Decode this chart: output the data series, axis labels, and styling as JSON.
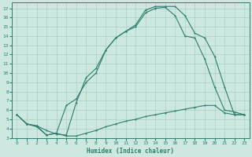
{
  "xlabel": "Humidex (Indice chaleur)",
  "bg_color": "#cce8e0",
  "line_color": "#2e7d6e",
  "grid_color": "#a0c8be",
  "xlim": [
    -0.5,
    23.5
  ],
  "ylim": [
    3.0,
    17.6
  ],
  "xticks": [
    0,
    1,
    2,
    3,
    4,
    5,
    6,
    7,
    8,
    9,
    10,
    11,
    12,
    13,
    14,
    15,
    16,
    17,
    18,
    19,
    20,
    21,
    22,
    23
  ],
  "yticks": [
    3,
    4,
    5,
    6,
    7,
    8,
    9,
    10,
    11,
    12,
    13,
    14,
    15,
    16,
    17
  ],
  "line1_x": [
    0,
    1,
    2,
    3,
    4,
    5,
    6,
    7,
    8,
    9,
    10,
    11,
    12,
    13,
    14,
    15,
    16,
    17,
    18,
    19,
    20,
    21,
    22,
    23
  ],
  "line1_y": [
    5.5,
    4.5,
    4.2,
    3.3,
    3.5,
    3.2,
    3.2,
    3.5,
    3.8,
    4.2,
    4.5,
    4.8,
    5.0,
    5.3,
    5.5,
    5.7,
    5.9,
    6.1,
    6.3,
    6.5,
    6.5,
    5.7,
    5.5,
    5.5
  ],
  "line2_x": [
    0,
    1,
    2,
    3,
    4,
    5,
    6,
    7,
    8,
    9,
    10,
    11,
    12,
    13,
    14,
    15,
    16,
    17,
    18,
    19,
    20,
    21,
    22,
    23
  ],
  "line2_y": [
    5.5,
    4.5,
    4.3,
    3.3,
    3.5,
    6.5,
    7.2,
    9.0,
    10.0,
    12.5,
    13.8,
    14.5,
    15.0,
    16.5,
    17.0,
    17.1,
    16.2,
    14.0,
    13.8,
    11.5,
    8.5,
    6.0,
    5.8,
    5.5
  ],
  "line3_x": [
    0,
    1,
    2,
    3,
    4,
    5,
    6,
    7,
    8,
    9,
    10,
    11,
    12,
    13,
    14,
    15,
    16,
    17,
    18,
    19,
    20,
    21,
    22,
    23
  ],
  "line3_y": [
    5.5,
    4.5,
    4.3,
    3.8,
    3.4,
    3.3,
    6.8,
    9.5,
    10.5,
    12.5,
    13.8,
    14.5,
    15.2,
    16.8,
    17.2,
    17.2,
    17.2,
    16.2,
    14.3,
    13.8,
    11.8,
    8.5,
    5.5,
    5.5
  ]
}
